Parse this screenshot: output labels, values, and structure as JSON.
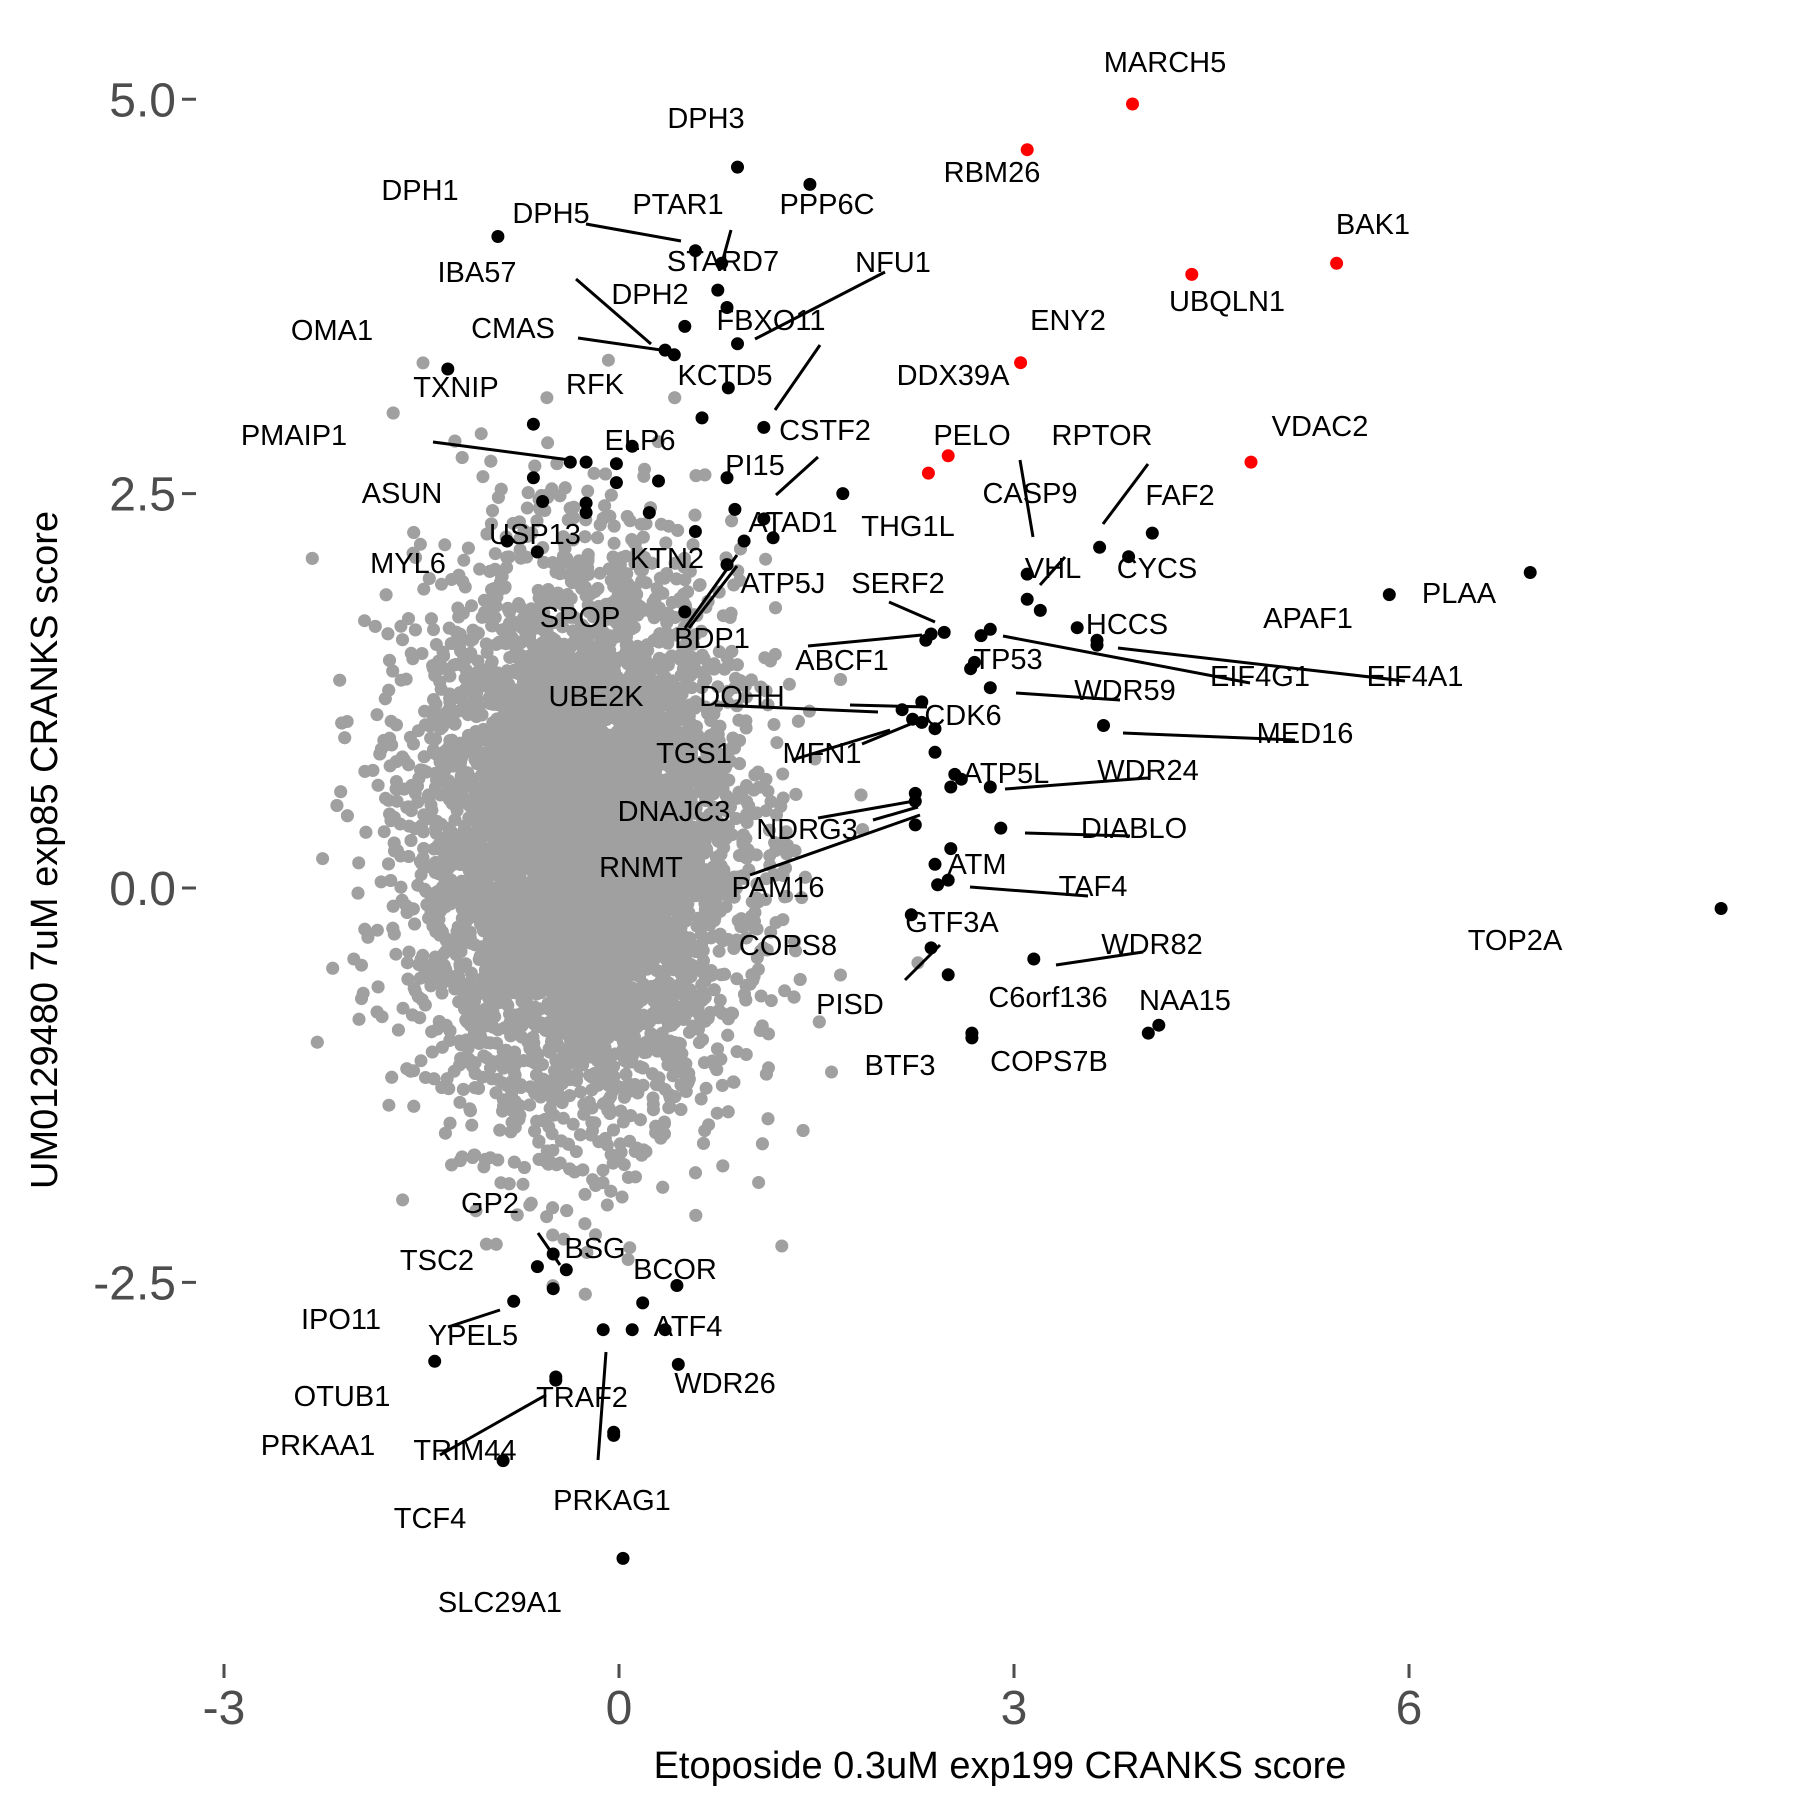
{
  "chart_data": {
    "type": "scatter",
    "title": "",
    "xlabel": "Etoposide 0.3uM exp199 CRANKS score",
    "ylabel": "UM0129480 7uM exp85 CRANKS score",
    "xlim": [
      -3.2,
      9.2
    ],
    "ylim": [
      -4.8,
      5.55
    ],
    "x_ticks": [
      -3,
      0,
      3,
      6
    ],
    "x_tick_labels": [
      "-3",
      "0",
      "3",
      "6"
    ],
    "y_ticks": [
      -2.5,
      0,
      2.5,
      5
    ],
    "y_tick_labels": [
      "-2.5",
      "0.0",
      "2.5",
      "5.0"
    ],
    "grid": false,
    "colors": {
      "background": "#ffffff",
      "other_genes": "#a0a0a0",
      "labeled_genes": "#000000",
      "highlighted_genes": "#ff0000",
      "axis_text": "#4d4d4d"
    },
    "background_cloud": {
      "description_color": "#a0a0a0",
      "center": [
        -0.3,
        0.3
      ],
      "sd": [
        0.6,
        0.85
      ],
      "count": 9000
    },
    "labeled_points": [
      {
        "gene": "MARCH5",
        "x": 3.9,
        "y": 4.97,
        "highlight": true
      },
      {
        "gene": "RBM26",
        "x": 3.1,
        "y": 4.68,
        "highlight": true
      },
      {
        "gene": "BAK1",
        "x": 5.45,
        "y": 3.96,
        "highlight": true
      },
      {
        "gene": "UBQLN1",
        "x": 4.35,
        "y": 3.89,
        "highlight": true
      },
      {
        "gene": "ENY2",
        "x": 3.05,
        "y": 3.33,
        "highlight": true
      },
      {
        "gene": "VDAC2",
        "x": 4.8,
        "y": 2.7,
        "highlight": true
      },
      {
        "gene": "DDX39A",
        "x": 2.5,
        "y": 2.74,
        "highlight": true
      },
      {
        "gene": "",
        "x": 2.35,
        "y": 2.63,
        "highlight": true
      },
      {
        "gene": "DPH3",
        "x": 0.9,
        "y": 4.57,
        "highlight": false
      },
      {
        "gene": "PPP6C",
        "x": 1.45,
        "y": 4.46,
        "highlight": false
      },
      {
        "gene": "DPH1",
        "x": -0.92,
        "y": 4.13,
        "highlight": false
      },
      {
        "gene": "DPH5",
        "x": 0.58,
        "y": 4.04,
        "highlight": false
      },
      {
        "gene": "PTAR1",
        "x": 0.78,
        "y": 3.96,
        "highlight": false
      },
      {
        "gene": "STARD7",
        "x": 0.75,
        "y": 3.79,
        "highlight": false
      },
      {
        "gene": "NFU1",
        "x": 0.82,
        "y": 3.68,
        "highlight": false
      },
      {
        "gene": "IBA57",
        "x": 0.35,
        "y": 3.41,
        "highlight": false
      },
      {
        "gene": "DPH2",
        "x": 0.5,
        "y": 3.56,
        "highlight": false
      },
      {
        "gene": "CMAS",
        "x": 0.42,
        "y": 3.38,
        "highlight": false
      },
      {
        "gene": "FBXO11",
        "x": 0.9,
        "y": 3.45,
        "highlight": false
      },
      {
        "gene": "OMA1",
        "x": -1.3,
        "y": 3.29,
        "highlight": false
      },
      {
        "gene": "KCTD5",
        "x": 0.83,
        "y": 3.17,
        "highlight": false
      },
      {
        "gene": "RFK",
        "x": 0.63,
        "y": 2.98,
        "highlight": false
      },
      {
        "gene": "TXNIP",
        "x": -0.65,
        "y": 2.94,
        "highlight": false
      },
      {
        "gene": "CSTF2",
        "x": 1.1,
        "y": 2.92,
        "highlight": false
      },
      {
        "gene": "ELP6",
        "x": 0.1,
        "y": 2.8,
        "highlight": false
      },
      {
        "gene": "PMAIP1",
        "x": -0.37,
        "y": 2.7,
        "highlight": false
      },
      {
        "gene": "",
        "x": -0.25,
        "y": 2.7,
        "highlight": false
      },
      {
        "gene": "",
        "x": -0.02,
        "y": 2.69,
        "highlight": false
      },
      {
        "gene": "PI15",
        "x": 0.82,
        "y": 2.6,
        "highlight": false
      },
      {
        "gene": "",
        "x": 0.3,
        "y": 2.58,
        "highlight": false
      },
      {
        "gene": "",
        "x": -0.02,
        "y": 2.57,
        "highlight": false
      },
      {
        "gene": "",
        "x": -0.65,
        "y": 2.6,
        "highlight": false
      },
      {
        "gene": "",
        "x": 1.7,
        "y": 2.5,
        "highlight": false
      },
      {
        "gene": "ASUN",
        "x": -0.58,
        "y": 2.45,
        "highlight": false
      },
      {
        "gene": "",
        "x": -0.25,
        "y": 2.44,
        "highlight": false
      },
      {
        "gene": "",
        "x": -0.25,
        "y": 2.38,
        "highlight": false
      },
      {
        "gene": "",
        "x": 0.88,
        "y": 2.4,
        "highlight": false
      },
      {
        "gene": "",
        "x": 0.23,
        "y": 2.38,
        "highlight": false
      },
      {
        "gene": "ATAD1",
        "x": 1.1,
        "y": 2.34,
        "highlight": false
      },
      {
        "gene": "",
        "x": 0.58,
        "y": 2.26,
        "highlight": false
      },
      {
        "gene": "",
        "x": 0.95,
        "y": 2.2,
        "highlight": false
      },
      {
        "gene": "",
        "x": 1.17,
        "y": 2.22,
        "highlight": false
      },
      {
        "gene": "MYL6",
        "x": -0.85,
        "y": 2.2,
        "highlight": false
      },
      {
        "gene": "USP13",
        "x": -0.62,
        "y": 2.13,
        "highlight": false
      },
      {
        "gene": "KTN2",
        "x": 0.82,
        "y": 2.05,
        "highlight": false
      },
      {
        "gene": "SPOP",
        "x": 0.5,
        "y": 1.75,
        "highlight": false
      },
      {
        "gene": "FAF2",
        "x": 4.05,
        "y": 2.25,
        "highlight": false
      },
      {
        "gene": "RPTOR",
        "x": 3.65,
        "y": 2.16,
        "highlight": false
      },
      {
        "gene": "CYCS",
        "x": 3.87,
        "y": 2.1,
        "highlight": false
      },
      {
        "gene": "THG1L",
        "x": 3.1,
        "y": 1.99,
        "highlight": false
      },
      {
        "gene": "PELO",
        "x": 3.1,
        "y": 1.83,
        "highlight": false
      },
      {
        "gene": "CASP9",
        "x": 3.2,
        "y": 1.76,
        "highlight": false
      },
      {
        "gene": "APAF1",
        "x": 5.85,
        "y": 1.86,
        "highlight": false
      },
      {
        "gene": "PLAA",
        "x": 6.92,
        "y": 2.0,
        "highlight": false
      },
      {
        "gene": "VHL",
        "x": 3.48,
        "y": 1.65,
        "highlight": false
      },
      {
        "gene": "ATP5J",
        "x": 2.37,
        "y": 1.61,
        "highlight": false
      },
      {
        "gene": "SERF2",
        "x": 2.47,
        "y": 1.62,
        "highlight": false
      },
      {
        "gene": "",
        "x": 2.82,
        "y": 1.64,
        "highlight": false
      },
      {
        "gene": "EIF4G1",
        "x": 2.75,
        "y": 1.6,
        "highlight": false
      },
      {
        "gene": "HCCS",
        "x": 3.63,
        "y": 1.57,
        "highlight": false
      },
      {
        "gene": "EIF4A1",
        "x": 3.63,
        "y": 1.54,
        "highlight": false
      },
      {
        "gene": "BDP1",
        "x": 2.33,
        "y": 1.57,
        "highlight": false
      },
      {
        "gene": "ABCF1",
        "x": 2.7,
        "y": 1.43,
        "highlight": false
      },
      {
        "gene": "TP53",
        "x": 2.67,
        "y": 1.39,
        "highlight": false
      },
      {
        "gene": "WDR59",
        "x": 2.82,
        "y": 1.27,
        "highlight": false
      },
      {
        "gene": "UBE2K",
        "x": 2.3,
        "y": 1.18,
        "highlight": false
      },
      {
        "gene": "DOHH",
        "x": 2.15,
        "y": 1.13,
        "highlight": false
      },
      {
        "gene": "",
        "x": 2.23,
        "y": 1.07,
        "highlight": false
      },
      {
        "gene": "CDK6",
        "x": 2.4,
        "y": 1.01,
        "highlight": false
      },
      {
        "gene": "MED16",
        "x": 3.68,
        "y": 1.03,
        "highlight": false
      },
      {
        "gene": "TGS1",
        "x": 2.3,
        "y": 1.05,
        "highlight": false
      },
      {
        "gene": "MFN1",
        "x": 2.4,
        "y": 0.86,
        "highlight": false
      },
      {
        "gene": "ATP5L",
        "x": 2.55,
        "y": 0.72,
        "highlight": false
      },
      {
        "gene": "",
        "x": 2.6,
        "y": 0.69,
        "highlight": false
      },
      {
        "gene": "WDR24",
        "x": 2.82,
        "y": 0.64,
        "highlight": false
      },
      {
        "gene": "",
        "x": 2.52,
        "y": 0.64,
        "highlight": false
      },
      {
        "gene": "DNAJC3",
        "x": 2.25,
        "y": 0.6,
        "highlight": false
      },
      {
        "gene": "NDRG3",
        "x": 2.25,
        "y": 0.55,
        "highlight": false
      },
      {
        "gene": "DIABLO",
        "x": 2.9,
        "y": 0.38,
        "highlight": false
      },
      {
        "gene": "RNMT",
        "x": 2.25,
        "y": 0.4,
        "highlight": false
      },
      {
        "gene": "",
        "x": 2.52,
        "y": 0.25,
        "highlight": false
      },
      {
        "gene": "ATM",
        "x": 2.4,
        "y": 0.15,
        "highlight": false
      },
      {
        "gene": "PAM16",
        "x": 2.5,
        "y": 0.05,
        "highlight": false
      },
      {
        "gene": "TAF4",
        "x": 2.42,
        "y": 0.02,
        "highlight": false
      },
      {
        "gene": "GTF3A",
        "x": 2.22,
        "y": -0.17,
        "highlight": false
      },
      {
        "gene": "COPS8",
        "x": 2.37,
        "y": -0.38,
        "highlight": false
      },
      {
        "gene": "WDR82",
        "x": 3.15,
        "y": -0.45,
        "highlight": false
      },
      {
        "gene": "PISD",
        "x": 2.5,
        "y": -0.55,
        "highlight": false
      },
      {
        "gene": "C6orf136",
        "x": 2.68,
        "y": -0.95,
        "highlight": false
      },
      {
        "gene": "NAA15",
        "x": 4.1,
        "y": -0.87,
        "highlight": false
      },
      {
        "gene": "COPS7B",
        "x": 4.02,
        "y": -0.92,
        "highlight": false
      },
      {
        "gene": "BTF3",
        "x": 2.68,
        "y": -0.92,
        "highlight": false
      },
      {
        "gene": "TOP2A",
        "x": 8.37,
        "y": -0.13,
        "highlight": false
      },
      {
        "gene": "GP2",
        "x": -0.5,
        "y": -2.32,
        "highlight": false
      },
      {
        "gene": "BSG",
        "x": -0.4,
        "y": -2.42,
        "highlight": false
      },
      {
        "gene": "TSC2",
        "x": -0.62,
        "y": -2.4,
        "highlight": false
      },
      {
        "gene": "BCOR",
        "x": 0.44,
        "y": -2.52,
        "highlight": false
      },
      {
        "gene": "",
        "x": -0.5,
        "y": -2.54,
        "highlight": false
      },
      {
        "gene": "IPO11",
        "x": -0.8,
        "y": -2.62,
        "highlight": false
      },
      {
        "gene": "",
        "x": 0.18,
        "y": -2.63,
        "highlight": false
      },
      {
        "gene": "YPEL5",
        "x": -0.12,
        "y": -2.8,
        "highlight": false
      },
      {
        "gene": "",
        "x": 0.1,
        "y": -2.8,
        "highlight": false
      },
      {
        "gene": "ATF4",
        "x": 0.35,
        "y": -2.8,
        "highlight": false
      },
      {
        "gene": "OTUB1",
        "x": -1.4,
        "y": -3.0,
        "highlight": false
      },
      {
        "gene": "WDR26",
        "x": 0.45,
        "y": -3.02,
        "highlight": false
      },
      {
        "gene": "TRAF2",
        "x": -0.48,
        "y": -3.1,
        "highlight": false
      },
      {
        "gene": "TRIM44",
        "x": -0.04,
        "y": -3.45,
        "highlight": false
      },
      {
        "gene": "PRKAG1",
        "x": -0.04,
        "y": -3.47,
        "highlight": false
      },
      {
        "gene": "TCF4",
        "x": -0.88,
        "y": -3.63,
        "highlight": false
      },
      {
        "gene": "PRKAA1",
        "x": -0.48,
        "y": -3.12,
        "highlight": false
      },
      {
        "gene": "SLC29A1",
        "x": 0.03,
        "y": -4.25,
        "highlight": false
      }
    ]
  }
}
